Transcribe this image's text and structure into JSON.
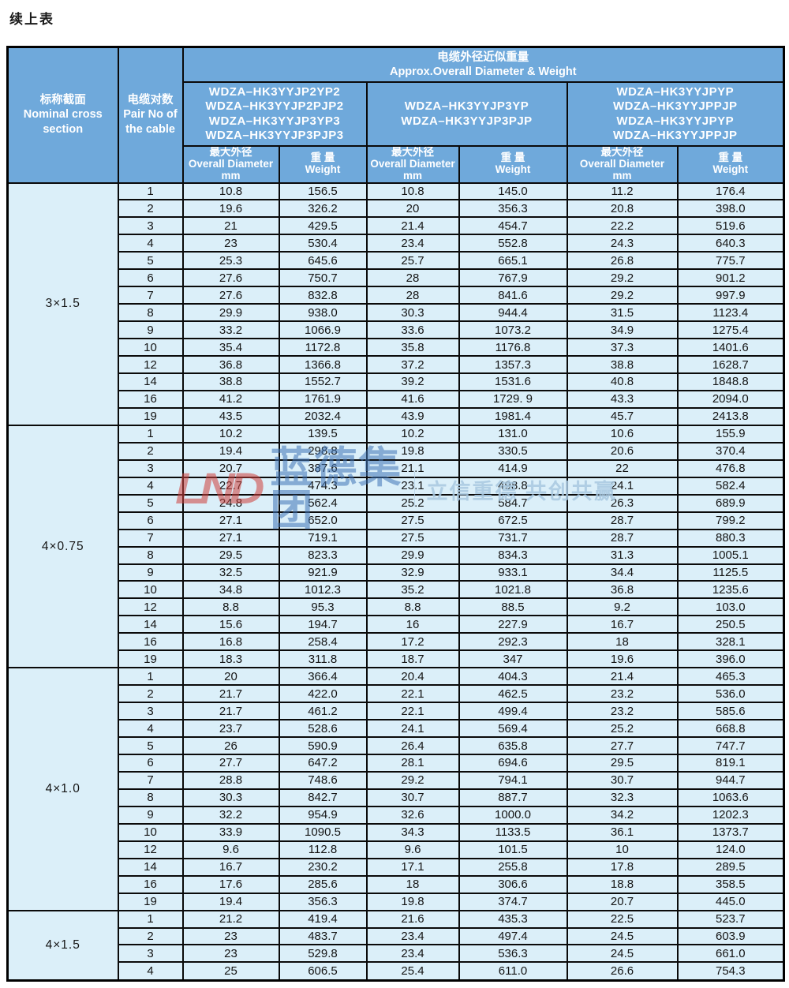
{
  "page_title": "续上表",
  "colors": {
    "header_bg": "#6FA9DB",
    "row_bg": "#DBEFF9",
    "border": "#0a0a0a",
    "watermark_logo_red": "#D0403C",
    "watermark_brand_blue": "#3F74B6",
    "watermark_slogan_blue": "#A9C9E1"
  },
  "table": {
    "header": {
      "col_nominal": "标称截面\nNominal cross\nsection",
      "col_pair": "电缆对数\nPair No of\nthe cable",
      "span_title": "电缆外径近似重量\nApprox.Overall Diameter & Weight",
      "groups": [
        "WDZA–HK3YYJP2YP2\nWDZA–HK3YYJP2PJP2\nWDZA–HK3YYJP3YP3\nWDZA–HK3YYJP3PJP3",
        "WDZA–HK3YYJP3YP\nWDZA–HK3YYJP3PJP",
        "WDZA–HK3YYJPYP\nWDZA–HK3YYJPPJP\nWDZA–HK3YYJPYP\nWDZA–HK3YYJPPJP"
      ],
      "od_label": "最大外径\nOverall Diameter\nmm",
      "weight_label": "重 量\nWeight"
    },
    "sections": [
      {
        "label": "3×1.5",
        "rows": [
          [
            "1",
            "10.8",
            "156.5",
            "10.8",
            "145.0",
            "11.2",
            "176.4"
          ],
          [
            "2",
            "19.6",
            "326.2",
            "20",
            "356.3",
            "20.8",
            "398.0"
          ],
          [
            "3",
            "21",
            "429.5",
            "21.4",
            "454.7",
            "22.2",
            "519.6"
          ],
          [
            "4",
            "23",
            "530.4",
            "23.4",
            "552.8",
            "24.3",
            "640.3"
          ],
          [
            "5",
            "25.3",
            "645.6",
            "25.7",
            "665.1",
            "26.8",
            "775.7"
          ],
          [
            "6",
            "27.6",
            "750.7",
            "28",
            "767.9",
            "29.2",
            "901.2"
          ],
          [
            "7",
            "27.6",
            "832.8",
            "28",
            "841.6",
            "29.2",
            "997.9"
          ],
          [
            "8",
            "29.9",
            "938.0",
            "30.3",
            "944.4",
            "31.5",
            "1123.4"
          ],
          [
            "9",
            "33.2",
            "1066.9",
            "33.6",
            "1073.2",
            "34.9",
            "1275.4"
          ],
          [
            "10",
            "35.4",
            "1172.8",
            "35.8",
            "1176.8",
            "37.3",
            "1401.6"
          ],
          [
            "12",
            "36.8",
            "1366.8",
            "37.2",
            "1357.3",
            "38.8",
            "1628.7"
          ],
          [
            "14",
            "38.8",
            "1552.7",
            "39.2",
            "1531.6",
            "40.8",
            "1848.8"
          ],
          [
            "16",
            "41.2",
            "1761.9",
            "41.6",
            "1729. 9",
            "43.3",
            "2094.0"
          ],
          [
            "19",
            "43.5",
            "2032.4",
            "43.9",
            "1981.4",
            "45.7",
            "2413.8"
          ]
        ]
      },
      {
        "label": "4×0.75",
        "rows": [
          [
            "1",
            "10.2",
            "139.5",
            "10.2",
            "131.0",
            "10.6",
            "155.9"
          ],
          [
            "2",
            "19.4",
            "298.8",
            "19.8",
            "330.5",
            "20.6",
            "370.4"
          ],
          [
            "3",
            "20.7",
            "387.6",
            "21.1",
            "414.9",
            "22",
            "476.8"
          ],
          [
            "4",
            "22.7",
            "474.3",
            "23.1",
            "498.8",
            "24.1",
            "582.4"
          ],
          [
            "5",
            "24.8",
            "562.4",
            "25.2",
            "584.7",
            "26.3",
            "689.9"
          ],
          [
            "6",
            "27.1",
            "652.0",
            "27.5",
            "672.5",
            "28.7",
            "799.2"
          ],
          [
            "7",
            "27.1",
            "719.1",
            "27.5",
            "731.7",
            "28.7",
            "880.3"
          ],
          [
            "8",
            "29.5",
            "823.3",
            "29.9",
            "834.3",
            "31.3",
            "1005.1"
          ],
          [
            "9",
            "32.5",
            "921.9",
            "32.9",
            "933.1",
            "34.4",
            "1125.5"
          ],
          [
            "10",
            "34.8",
            "1012.3",
            "35.2",
            "1021.8",
            "36.8",
            "1235.6"
          ],
          [
            "12",
            "8.8",
            "95.3",
            "8.8",
            "88.5",
            "9.2",
            "103.0"
          ],
          [
            "14",
            "15.6",
            "194.7",
            "16",
            "227.9",
            "16.7",
            "250.5"
          ],
          [
            "16",
            "16.8",
            "258.4",
            "17.2",
            "292.3",
            "18",
            "328.1"
          ],
          [
            "19",
            "18.3",
            "311.8",
            "18.7",
            "347",
            "19.6",
            "396.0"
          ]
        ]
      },
      {
        "label": "4×1.0",
        "rows": [
          [
            "1",
            "20",
            "366.4",
            "20.4",
            "404.3",
            "21.4",
            "465.3"
          ],
          [
            "2",
            "21.7",
            "422.0",
            "22.1",
            "462.5",
            "23.2",
            "536.0"
          ],
          [
            "3",
            "21.7",
            "461.2",
            "22.1",
            "499.4",
            "23.2",
            "585.6"
          ],
          [
            "4",
            "23.7",
            "528.6",
            "24.1",
            "569.4",
            "25.2",
            "668.8"
          ],
          [
            "5",
            "26",
            "590.9",
            "26.4",
            "635.8",
            "27.7",
            "747.7"
          ],
          [
            "6",
            "27.7",
            "647.2",
            "28.1",
            "694.6",
            "29.5",
            "819.1"
          ],
          [
            "7",
            "28.8",
            "748.6",
            "29.2",
            "794.1",
            "30.7",
            "944.7"
          ],
          [
            "8",
            "30.3",
            "842.7",
            "30.7",
            "887.7",
            "32.3",
            "1063.6"
          ],
          [
            "9",
            "32.2",
            "954.9",
            "32.6",
            "1000.0",
            "34.2",
            "1202.3"
          ],
          [
            "10",
            "33.9",
            "1090.5",
            "34.3",
            "1133.5",
            "36.1",
            "1373.7"
          ],
          [
            "12",
            "9.6",
            "112.8",
            "9.6",
            "101.5",
            "10",
            "124.0"
          ],
          [
            "14",
            "16.7",
            "230.2",
            "17.1",
            "255.8",
            "17.8",
            "289.5"
          ],
          [
            "16",
            "17.6",
            "285.6",
            "18",
            "306.6",
            "18.8",
            "358.5"
          ],
          [
            "19",
            "19.4",
            "356.3",
            "19.8",
            "374.7",
            "20.7",
            "445.0"
          ]
        ]
      },
      {
        "label": "4×1.5",
        "rows": [
          [
            "1",
            "21.2",
            "419.4",
            "21.6",
            "435.3",
            "22.5",
            "523.7"
          ],
          [
            "2",
            "23",
            "483.7",
            "23.4",
            "497.4",
            "24.5",
            "603.9"
          ],
          [
            "3",
            "23",
            "529.8",
            "23.4",
            "536.3",
            "24.5",
            "661.0"
          ],
          [
            "4",
            "25",
            "606.5",
            "25.4",
            "611.0",
            "26.6",
            "754.3"
          ]
        ]
      }
    ]
  },
  "watermark": {
    "logo": "LND",
    "brand": "蓝德集团",
    "slogan": "立信重德 共创共赢"
  }
}
